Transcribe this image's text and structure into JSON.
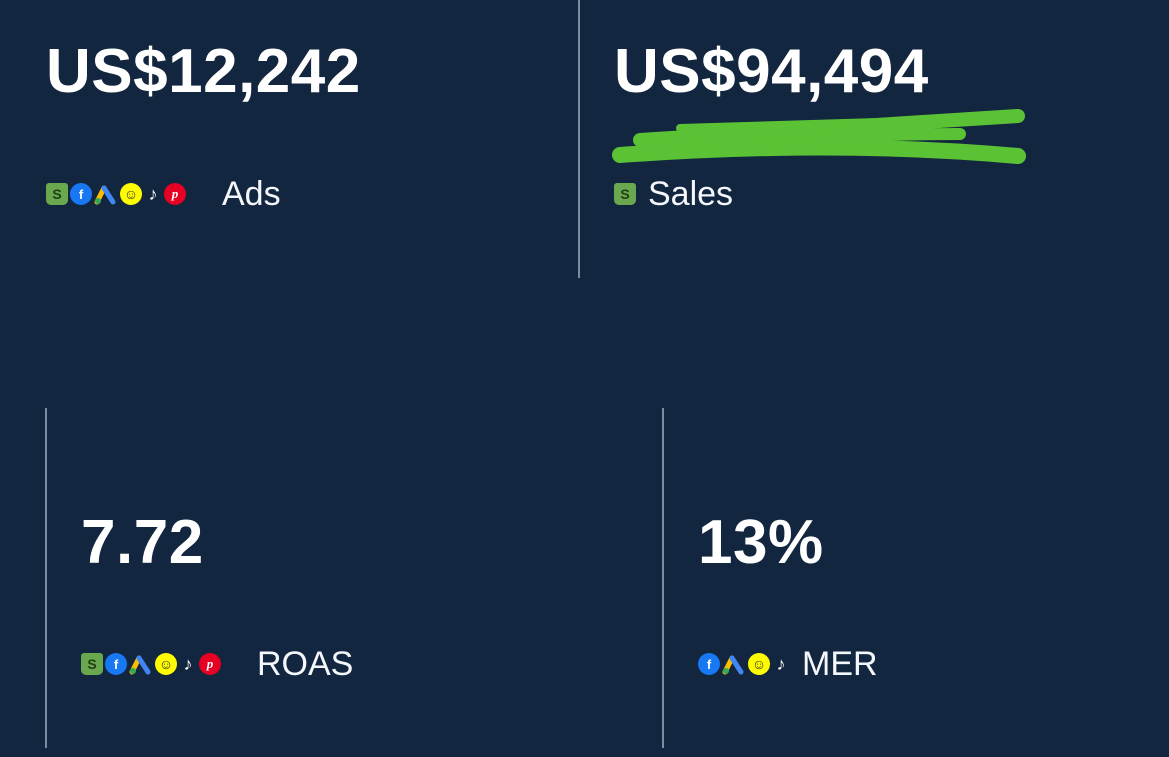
{
  "cards": {
    "ads": {
      "value": "US$12,242",
      "label": "Ads",
      "icons": [
        "shopify-icon",
        "facebook-icon",
        "google-ads-icon",
        "snapchat-icon",
        "tiktok-icon",
        "pinterest-icon",
        "microsoft-icon"
      ]
    },
    "sales": {
      "value": "US$94,494",
      "label": "Sales",
      "icons": [
        "shopify-icon"
      ]
    },
    "roas": {
      "value": "7.72",
      "label": "ROAS",
      "icons": [
        "shopify-icon",
        "facebook-icon",
        "google-ads-icon",
        "snapchat-icon",
        "tiktok-icon",
        "pinterest-icon",
        "microsoft-icon"
      ]
    },
    "mer": {
      "value": "13%",
      "label": "MER",
      "icons": [
        "facebook-icon",
        "google-ads-icon",
        "snapchat-icon",
        "tiktok-icon"
      ]
    }
  },
  "colors": {
    "background": "#13263f",
    "text": "#ffffff",
    "divider": "#9fb0c6",
    "scribble": "#5bc236"
  },
  "glyphs": {
    "shopify": "S",
    "facebook": "f",
    "snapchat": "☺",
    "tiktok": "♪",
    "pinterest": "p"
  }
}
